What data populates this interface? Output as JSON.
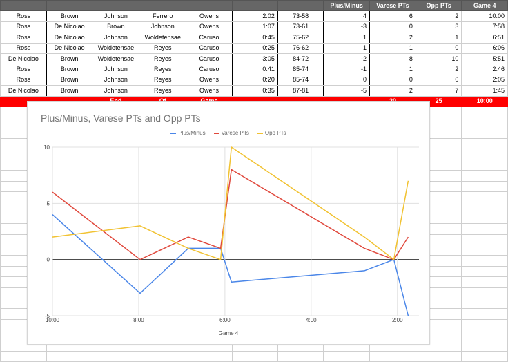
{
  "sheet": {
    "headers": [
      "",
      "",
      "",
      "",
      "",
      "",
      "",
      "Plus/Minus",
      "Varese PTs",
      "Opp PTs",
      "Game 4"
    ],
    "rows": [
      [
        "Ross",
        "Brown",
        "Johnson",
        "Ferrero",
        "Owens",
        "2:02",
        "73-58",
        "4",
        "6",
        "2",
        "10:00"
      ],
      [
        "Ross",
        "De Nicolao",
        "Brown",
        "Johnson",
        "Owens",
        "1:07",
        "73-61",
        "-3",
        "0",
        "3",
        "7:58"
      ],
      [
        "Ross",
        "De Nicolao",
        "Johnson",
        "Woldetensae",
        "Caruso",
        "0:45",
        "75-62",
        "1",
        "2",
        "1",
        "6:51"
      ],
      [
        "Ross",
        "De Nicolao",
        "Woldetensae",
        "Reyes",
        "Caruso",
        "0:25",
        "76-62",
        "1",
        "1",
        "0",
        "6:06"
      ],
      [
        "De Nicolao",
        "Brown",
        "Woldetensae",
        "Reyes",
        "Caruso",
        "3:05",
        "84-72",
        "-2",
        "8",
        "10",
        "5:51"
      ],
      [
        "Ross",
        "Brown",
        "Johnson",
        "Reyes",
        "Caruso",
        "0:41",
        "85-74",
        "-1",
        "1",
        "2",
        "2:46"
      ],
      [
        "Ross",
        "Brown",
        "Johnson",
        "Reyes",
        "Owens",
        "0:20",
        "85-74",
        "0",
        "0",
        "0",
        "2:05"
      ],
      [
        "De Nicolao",
        "Brown",
        "Johnson",
        "Reyes",
        "Owens",
        "0:35",
        "87-81",
        "-5",
        "2",
        "7",
        "1:45"
      ]
    ],
    "total": [
      "",
      "",
      "End",
      "Of",
      "Game",
      "",
      "",
      "",
      "20",
      "25",
      "10:00"
    ]
  },
  "chart_data": {
    "type": "line",
    "title": "Plus/Minus, Varese PTs and Opp PTs",
    "xlabel": "Game 4",
    "ylabel": "",
    "x_ticks": [
      "10:00",
      "8:00",
      "6:00",
      "4:00",
      "2:00"
    ],
    "y_ticks": [
      "10",
      "5",
      "0",
      "-5"
    ],
    "ylim": [
      -5,
      10
    ],
    "x_range_seconds": [
      600,
      90
    ],
    "x": [
      "10:00",
      "7:58",
      "6:51",
      "6:06",
      "5:51",
      "2:46",
      "2:05",
      "1:45"
    ],
    "series": [
      {
        "name": "Plus/Minus",
        "color": "#4a86e8",
        "values": [
          4,
          -3,
          1,
          1,
          -2,
          -1,
          0,
          -5
        ]
      },
      {
        "name": "Varese PTs",
        "color": "#e0483c",
        "values": [
          6,
          0,
          2,
          1,
          8,
          1,
          0,
          2
        ]
      },
      {
        "name": "Opp PTs",
        "color": "#f1c232",
        "values": [
          2,
          3,
          1,
          0,
          10,
          2,
          0,
          7
        ]
      }
    ],
    "grid": true,
    "legend_position": "top"
  }
}
